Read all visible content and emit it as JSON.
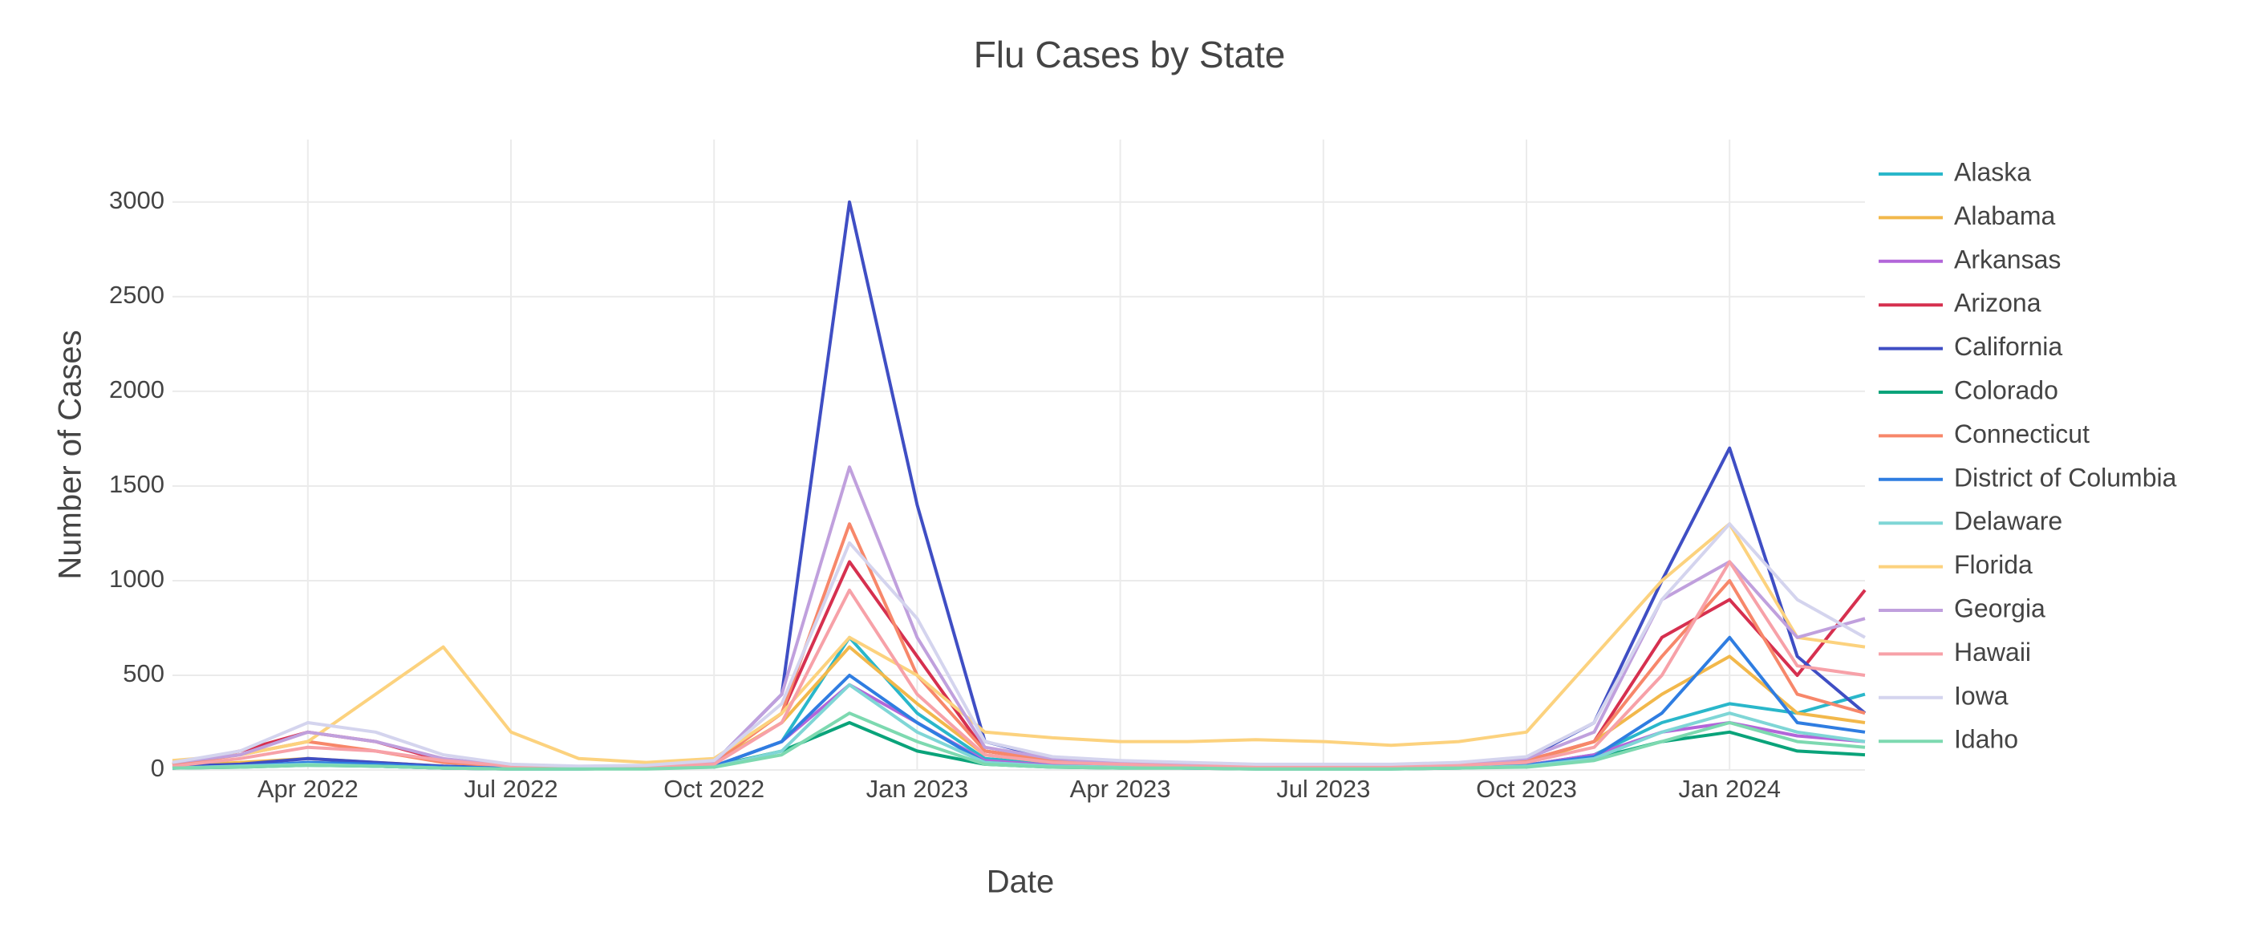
{
  "chart_data": {
    "type": "line",
    "title": "Flu Cases by State",
    "x_label": "Date",
    "y_label": "Number of Cases",
    "x": [
      "2022-02",
      "2022-03",
      "2022-04",
      "2022-05",
      "2022-06",
      "2022-07",
      "2022-08",
      "2022-09",
      "2022-10",
      "2022-11",
      "2022-12",
      "2023-01",
      "2023-02",
      "2023-03",
      "2023-04",
      "2023-05",
      "2023-06",
      "2023-07",
      "2023-08",
      "2023-09",
      "2023-10",
      "2023-11",
      "2023-12",
      "2024-01",
      "2024-02",
      "2024-03"
    ],
    "xlim": [
      "2022-02",
      "2024-03"
    ],
    "xticks": [
      {
        "value": "2022-04",
        "label": "Apr 2022"
      },
      {
        "value": "2022-07",
        "label": "Jul 2022"
      },
      {
        "value": "2022-10",
        "label": "Oct 2022"
      },
      {
        "value": "2023-01",
        "label": "Jan 2023"
      },
      {
        "value": "2023-04",
        "label": "Apr 2023"
      },
      {
        "value": "2023-07",
        "label": "Jul 2023"
      },
      {
        "value": "2023-10",
        "label": "Oct 2023"
      },
      {
        "value": "2024-01",
        "label": "Jan 2024"
      }
    ],
    "ylim": [
      0,
      3330
    ],
    "yticks": [
      0,
      500,
      1000,
      1500,
      2000,
      2500,
      3000
    ],
    "grid": true,
    "legend": "right",
    "series": [
      {
        "name": "Alaska",
        "color": "#2ab7ca",
        "values": [
          10,
          20,
          30,
          20,
          10,
          10,
          10,
          10,
          20,
          150,
          700,
          300,
          60,
          30,
          20,
          15,
          10,
          10,
          10,
          15,
          25,
          80,
          250,
          350,
          300,
          400
        ]
      },
      {
        "name": "Alabama",
        "color": "#f2b84b",
        "values": [
          20,
          40,
          60,
          40,
          20,
          10,
          10,
          20,
          40,
          250,
          650,
          350,
          80,
          40,
          25,
          20,
          15,
          15,
          15,
          20,
          40,
          150,
          400,
          600,
          300,
          250
        ]
      },
      {
        "name": "Arkansas",
        "color": "#b266d9",
        "values": [
          10,
          20,
          30,
          20,
          10,
          5,
          5,
          10,
          20,
          150,
          450,
          250,
          50,
          25,
          15,
          10,
          10,
          10,
          10,
          15,
          25,
          80,
          200,
          250,
          180,
          150
        ]
      },
      {
        "name": "Arizona",
        "color": "#d6304f",
        "values": [
          30,
          100,
          200,
          150,
          50,
          20,
          15,
          20,
          40,
          300,
          1100,
          600,
          100,
          50,
          30,
          20,
          20,
          20,
          20,
          30,
          50,
          150,
          700,
          900,
          500,
          950
        ]
      },
      {
        "name": "California",
        "color": "#3f4ec4",
        "values": [
          20,
          30,
          60,
          40,
          20,
          10,
          10,
          20,
          40,
          400,
          3000,
          1400,
          150,
          60,
          40,
          30,
          20,
          20,
          20,
          30,
          60,
          250,
          1000,
          1700,
          600,
          300
        ]
      },
      {
        "name": "Colorado",
        "color": "#0aa37a",
        "values": [
          10,
          15,
          25,
          20,
          10,
          5,
          5,
          10,
          20,
          100,
          250,
          100,
          30,
          15,
          10,
          10,
          5,
          5,
          5,
          10,
          20,
          60,
          150,
          200,
          100,
          80
        ]
      },
      {
        "name": "Connecticut",
        "color": "#f7876a",
        "values": [
          30,
          80,
          150,
          100,
          40,
          20,
          15,
          20,
          40,
          300,
          1300,
          500,
          100,
          50,
          30,
          20,
          20,
          20,
          20,
          30,
          50,
          150,
          600,
          1000,
          400,
          300
        ]
      },
      {
        "name": "District of Columbia",
        "color": "#2f7de1",
        "values": [
          10,
          20,
          40,
          30,
          15,
          10,
          10,
          10,
          20,
          150,
          500,
          250,
          40,
          20,
          15,
          10,
          10,
          10,
          10,
          15,
          25,
          70,
          300,
          700,
          250,
          200
        ]
      },
      {
        "name": "Delaware",
        "color": "#7fd6d6",
        "values": [
          10,
          20,
          30,
          20,
          10,
          5,
          5,
          10,
          15,
          100,
          450,
          200,
          40,
          20,
          15,
          10,
          10,
          10,
          10,
          10,
          20,
          60,
          200,
          300,
          200,
          150
        ]
      },
      {
        "name": "Florida",
        "color": "#fcd27e",
        "values": [
          50,
          80,
          150,
          400,
          650,
          200,
          60,
          40,
          60,
          300,
          700,
          500,
          200,
          170,
          150,
          150,
          160,
          150,
          130,
          150,
          200,
          600,
          1000,
          1300,
          700,
          650
        ]
      },
      {
        "name": "Georgia",
        "color": "#c0a0dd",
        "values": [
          40,
          80,
          200,
          150,
          60,
          20,
          15,
          20,
          40,
          400,
          1600,
          700,
          120,
          60,
          40,
          30,
          25,
          25,
          25,
          30,
          60,
          200,
          900,
          1100,
          700,
          800
        ]
      },
      {
        "name": "Hawaii",
        "color": "#f7a1a8",
        "values": [
          20,
          60,
          120,
          100,
          50,
          20,
          15,
          20,
          30,
          250,
          950,
          400,
          80,
          40,
          30,
          20,
          20,
          20,
          20,
          25,
          40,
          120,
          500,
          1100,
          550,
          500
        ]
      },
      {
        "name": "Iowa",
        "color": "#d4d4ee",
        "values": [
          40,
          100,
          250,
          200,
          80,
          30,
          20,
          25,
          50,
          350,
          1200,
          800,
          150,
          70,
          50,
          40,
          30,
          30,
          30,
          40,
          70,
          250,
          900,
          1300,
          900,
          700
        ]
      },
      {
        "name": "Idaho",
        "color": "#7dd9b0",
        "values": [
          10,
          15,
          25,
          20,
          10,
          5,
          5,
          5,
          15,
          80,
          300,
          150,
          30,
          15,
          10,
          10,
          5,
          5,
          5,
          10,
          15,
          50,
          150,
          250,
          150,
          120
        ]
      }
    ]
  }
}
